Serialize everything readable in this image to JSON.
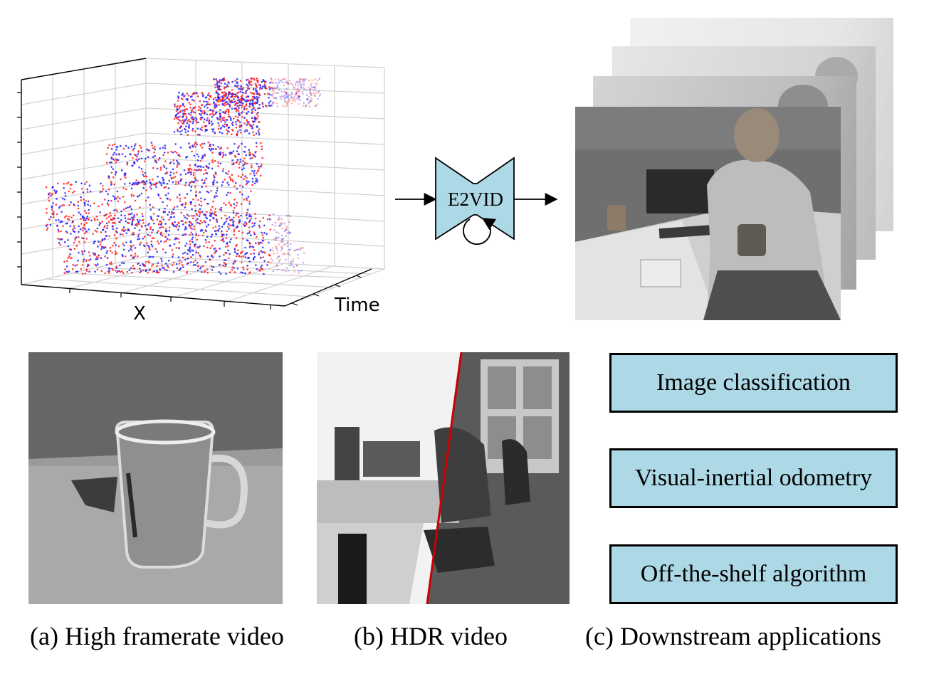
{
  "plot3d": {
    "x_axis_label": "X",
    "time_axis_label": "Time",
    "polarity_colors": {
      "positive": "#ff2020",
      "negative": "#2020ff"
    }
  },
  "network": {
    "label": "E2VID",
    "fill": "#add8e6"
  },
  "applications": [
    {
      "label": "Image classification"
    },
    {
      "label": "Visual-inertial odometry"
    },
    {
      "label": "Off-the-shelf algorithm"
    }
  ],
  "captions": {
    "a": "(a) High framerate video",
    "b": "(b) HDR video",
    "c": "(c) Downstream applications"
  },
  "accent_line_color": "#cc0000"
}
